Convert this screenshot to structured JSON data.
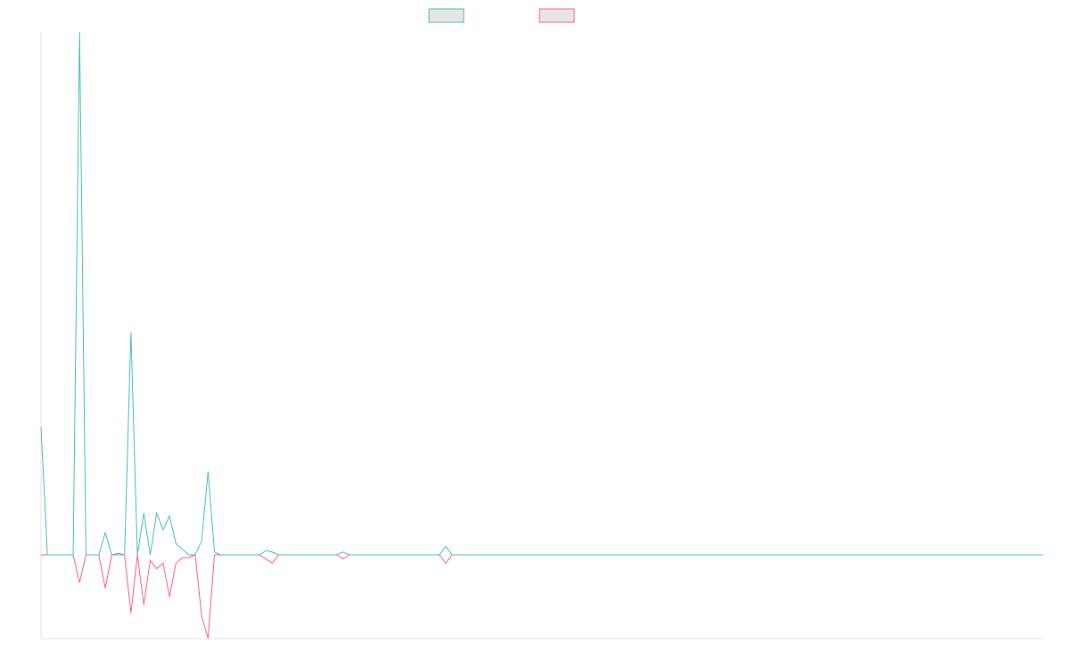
{
  "chart_data": {
    "type": "line",
    "title": "",
    "xlabel": "",
    "ylabel": "",
    "grid": false,
    "legend": "top-center",
    "ylim": [
      -30,
      185
    ],
    "x_count": 157,
    "series": [
      {
        "color": "#4bc0c0",
        "fill": "#e6e6e6",
        "points": [
          [
            0,
            46
          ],
          [
            1,
            0
          ],
          [
            5,
            0
          ],
          [
            6,
            188
          ],
          [
            7,
            0
          ],
          [
            9,
            0
          ],
          [
            10,
            8
          ],
          [
            11,
            0
          ],
          [
            13,
            0
          ],
          [
            14,
            80
          ],
          [
            15,
            0
          ],
          [
            16,
            15
          ],
          [
            17,
            0
          ],
          [
            18,
            15
          ],
          [
            19,
            9
          ],
          [
            20,
            14
          ],
          [
            21,
            4
          ],
          [
            22,
            2
          ],
          [
            23,
            0
          ],
          [
            24,
            0
          ],
          [
            25,
            5
          ],
          [
            26,
            30
          ],
          [
            27,
            1
          ],
          [
            28,
            0
          ],
          [
            34,
            0
          ],
          [
            35,
            1.5
          ],
          [
            36,
            1
          ],
          [
            37,
            0
          ],
          [
            46,
            0
          ],
          [
            47,
            1
          ],
          [
            48,
            0
          ],
          [
            62,
            0
          ],
          [
            63,
            3
          ],
          [
            64,
            0
          ],
          [
            156,
            0
          ]
        ]
      },
      {
        "color": "#ff6384",
        "fill": "#e6e6e6",
        "points": [
          [
            0,
            0
          ],
          [
            5,
            0
          ],
          [
            6,
            -10
          ],
          [
            7,
            0
          ],
          [
            9,
            0
          ],
          [
            10,
            -12
          ],
          [
            11,
            0
          ],
          [
            12,
            0.5
          ],
          [
            13,
            0
          ],
          [
            14,
            -21
          ],
          [
            15,
            0
          ],
          [
            16,
            -18
          ],
          [
            17,
            -2
          ],
          [
            18,
            -5
          ],
          [
            19,
            -3
          ],
          [
            20,
            -15
          ],
          [
            21,
            -3
          ],
          [
            22,
            -1
          ],
          [
            23,
            -1
          ],
          [
            24,
            0
          ],
          [
            25,
            -22
          ],
          [
            26,
            -30
          ],
          [
            27,
            0
          ],
          [
            34,
            0
          ],
          [
            35,
            -1.5
          ],
          [
            36,
            -3
          ],
          [
            37,
            0
          ],
          [
            46,
            0
          ],
          [
            47,
            -1.5
          ],
          [
            48,
            0
          ],
          [
            62,
            0
          ],
          [
            63,
            -3
          ],
          [
            64,
            0
          ],
          [
            156,
            0
          ]
        ]
      }
    ]
  }
}
